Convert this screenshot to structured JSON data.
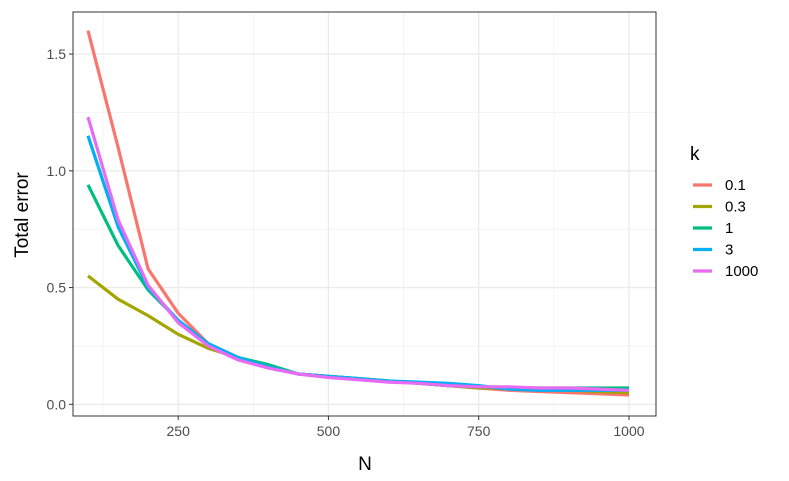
{
  "chart_data": {
    "type": "line",
    "xlabel": "N",
    "ylabel": "Total error",
    "xlim": [
      75,
      1045
    ],
    "ylim": [
      -0.05,
      1.68
    ],
    "xticks": [
      250,
      500,
      750,
      1000
    ],
    "yticks": [
      0.0,
      0.5,
      1.0,
      1.5
    ],
    "ytick_labels": [
      "0.0",
      "0.5",
      "1.0",
      "1.5"
    ],
    "grid": true,
    "legend_position": "right",
    "legend_title": "k",
    "x": [
      100,
      150,
      200,
      250,
      300,
      350,
      400,
      450,
      500,
      550,
      600,
      650,
      700,
      750,
      800,
      850,
      900,
      950,
      1000
    ],
    "series": [
      {
        "name": "0.1",
        "color": "#F8766D",
        "values": [
          1.6,
          1.1,
          0.58,
          0.39,
          0.26,
          0.2,
          0.16,
          0.13,
          0.12,
          0.11,
          0.1,
          0.09,
          0.08,
          0.07,
          0.06,
          0.055,
          0.05,
          0.045,
          0.04
        ]
      },
      {
        "name": "0.3",
        "color": "#A3A500",
        "values": [
          0.55,
          0.45,
          0.38,
          0.3,
          0.24,
          0.2,
          0.16,
          0.13,
          0.12,
          0.11,
          0.1,
          0.09,
          0.08,
          0.07,
          0.07,
          0.065,
          0.06,
          0.055,
          0.05
        ]
      },
      {
        "name": "1",
        "color": "#00BF7D",
        "values": [
          0.94,
          0.68,
          0.49,
          0.36,
          0.25,
          0.2,
          0.17,
          0.13,
          0.12,
          0.11,
          0.1,
          0.09,
          0.08,
          0.075,
          0.07,
          0.07,
          0.07,
          0.07,
          0.07
        ]
      },
      {
        "name": "3",
        "color": "#00B0F6",
        "values": [
          1.15,
          0.76,
          0.5,
          0.36,
          0.26,
          0.2,
          0.16,
          0.13,
          0.12,
          0.11,
          0.1,
          0.095,
          0.09,
          0.08,
          0.065,
          0.06,
          0.06,
          0.06,
          0.06
        ]
      },
      {
        "name": "1000",
        "color": "#E76BF3",
        "values": [
          1.23,
          0.79,
          0.51,
          0.35,
          0.25,
          0.19,
          0.155,
          0.13,
          0.115,
          0.105,
          0.095,
          0.09,
          0.08,
          0.075,
          0.075,
          0.07,
          0.07,
          0.065,
          0.06
        ]
      }
    ]
  }
}
